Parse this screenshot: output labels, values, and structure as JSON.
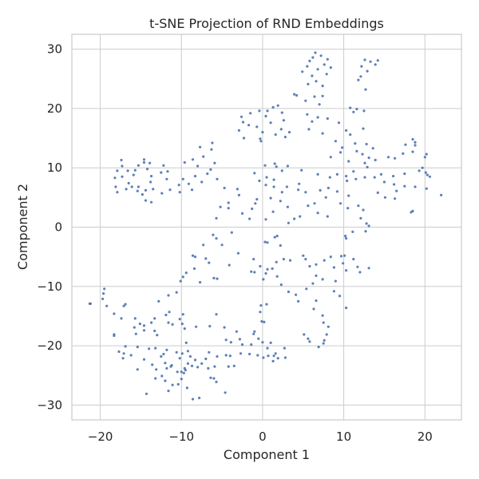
{
  "chart_data": {
    "type": "scatter",
    "title": "t-SNE Projection of RND Embeddings",
    "xlabel": "Component 1",
    "ylabel": "Component 2",
    "xlim": [
      -23.5,
      24.5
    ],
    "ylim": [
      -32.5,
      32.5
    ],
    "xticks": [
      -20,
      -10,
      0,
      10,
      20
    ],
    "yticks": [
      -30,
      -20,
      -10,
      0,
      10,
      20,
      30
    ],
    "grid": true,
    "color": "#4c72b0",
    "points": [
      [
        6.2,
        28.6
      ],
      [
        5.8,
        28.0
      ],
      [
        6.5,
        29.4
      ],
      [
        7.2,
        28.9
      ],
      [
        8.0,
        28.3
      ],
      [
        5.5,
        27.1
      ],
      [
        6.8,
        26.6
      ],
      [
        7.6,
        27.4
      ],
      [
        8.4,
        26.9
      ],
      [
        4.9,
        26.2
      ],
      [
        6.1,
        25.5
      ],
      [
        7.9,
        25.8
      ],
      [
        5.6,
        24.1
      ],
      [
        6.6,
        24.6
      ],
      [
        7.4,
        23.8
      ],
      [
        12.6,
        28.2
      ],
      [
        13.3,
        27.9
      ],
      [
        14.2,
        28.1
      ],
      [
        13.9,
        27.4
      ],
      [
        12.2,
        27.1
      ],
      [
        12.9,
        26.3
      ],
      [
        12.1,
        25.4
      ],
      [
        11.8,
        24.8
      ],
      [
        12.7,
        23.2
      ],
      [
        3.9,
        22.4
      ],
      [
        4.2,
        22.2
      ],
      [
        6.4,
        22.0
      ],
      [
        7.4,
        22.1
      ],
      [
        5.3,
        21.3
      ],
      [
        7.0,
        20.7
      ],
      [
        10.8,
        20.1
      ],
      [
        11.2,
        19.4
      ],
      [
        11.6,
        19.9
      ],
      [
        12.5,
        19.6
      ],
      [
        5.5,
        19.0
      ],
      [
        6.8,
        18.5
      ],
      [
        8.0,
        18.3
      ],
      [
        9.4,
        17.6
      ],
      [
        6.1,
        17.8
      ],
      [
        5.7,
        16.5
      ],
      [
        7.4,
        15.8
      ],
      [
        10.3,
        16.3
      ],
      [
        12.4,
        16.6
      ],
      [
        10.8,
        15.6
      ],
      [
        3.3,
        16.0
      ],
      [
        1.3,
        20.2
      ],
      [
        1.9,
        20.5
      ],
      [
        0.6,
        19.6
      ],
      [
        -0.4,
        19.6
      ],
      [
        2.4,
        19.3
      ],
      [
        -2.6,
        18.6
      ],
      [
        -1.5,
        19.2
      ],
      [
        0.4,
        18.7
      ],
      [
        2.6,
        18.0
      ],
      [
        -2.4,
        17.7
      ],
      [
        1.0,
        17.6
      ],
      [
        -1.7,
        17.2
      ],
      [
        -0.7,
        16.9
      ],
      [
        2.3,
        16.5
      ],
      [
        -2.9,
        16.3
      ],
      [
        0.0,
        16.0
      ],
      [
        1.6,
        15.6
      ],
      [
        -2.3,
        15.0
      ],
      [
        -0.3,
        14.9
      ],
      [
        2.8,
        15.2
      ],
      [
        -0.2,
        14.5
      ],
      [
        9.0,
        14.5
      ],
      [
        9.8,
        13.4
      ],
      [
        11.4,
        14.1
      ],
      [
        12.8,
        14.0
      ],
      [
        13.6,
        13.3
      ],
      [
        11.6,
        12.8
      ],
      [
        12.3,
        12.3
      ],
      [
        9.6,
        12.6
      ],
      [
        8.4,
        11.8
      ],
      [
        10.6,
        11.1
      ],
      [
        13.1,
        11.7
      ],
      [
        13.9,
        11.3
      ],
      [
        12.6,
        10.8
      ],
      [
        12.9,
        10.1
      ],
      [
        15.5,
        11.8
      ],
      [
        16.3,
        11.6
      ],
      [
        17.3,
        12.4
      ],
      [
        18.5,
        12.7
      ],
      [
        18.8,
        14.3
      ],
      [
        18.5,
        14.8
      ],
      [
        17.6,
        13.9
      ],
      [
        18.8,
        13.8
      ],
      [
        20.2,
        12.3
      ],
      [
        20.0,
        11.8
      ],
      [
        19.7,
        10.0
      ],
      [
        19.3,
        9.5
      ],
      [
        20.1,
        9.2
      ],
      [
        20.3,
        8.8
      ],
      [
        20.6,
        8.5
      ],
      [
        17.5,
        9.0
      ],
      [
        16.1,
        8.6
      ],
      [
        14.6,
        8.9
      ],
      [
        13.8,
        8.4
      ],
      [
        15.0,
        7.6
      ],
      [
        16.2,
        7.2
      ],
      [
        17.5,
        6.9
      ],
      [
        18.8,
        6.8
      ],
      [
        20.2,
        6.5
      ],
      [
        22.0,
        5.4
      ],
      [
        16.5,
        6.1
      ],
      [
        14.2,
        5.8
      ],
      [
        15.1,
        5.0
      ],
      [
        16.3,
        4.8
      ],
      [
        18.5,
        2.7
      ],
      [
        18.3,
        2.5
      ],
      [
        11.2,
        9.4
      ],
      [
        10.3,
        8.6
      ],
      [
        9.2,
        8.9
      ],
      [
        8.3,
        8.4
      ],
      [
        10.4,
        7.8
      ],
      [
        11.5,
        8.1
      ],
      [
        12.6,
        8.4
      ],
      [
        10.6,
        5.3
      ],
      [
        9.2,
        6.0
      ],
      [
        8.1,
        6.6
      ],
      [
        7.1,
        6.2
      ],
      [
        7.8,
        5.0
      ],
      [
        9.6,
        4.0
      ],
      [
        10.5,
        3.2
      ],
      [
        11.8,
        3.6
      ],
      [
        12.4,
        2.9
      ],
      [
        12.1,
        1.5
      ],
      [
        12.8,
        0.6
      ],
      [
        13.1,
        0.2
      ],
      [
        12.7,
        -0.7
      ],
      [
        11.1,
        -0.8
      ],
      [
        10.2,
        -1.5
      ],
      [
        -7.7,
        13.5
      ],
      [
        -6.2,
        14.2
      ],
      [
        -6.3,
        13.1
      ],
      [
        -7.3,
        11.9
      ],
      [
        -8.6,
        11.4
      ],
      [
        -5.9,
        10.8
      ],
      [
        -9.6,
        10.9
      ],
      [
        -8.0,
        10.3
      ],
      [
        -6.4,
        9.7
      ],
      [
        -6.8,
        9.0
      ],
      [
        -8.3,
        8.6
      ],
      [
        -9.8,
        8.1
      ],
      [
        -7.5,
        7.6
      ],
      [
        -5.6,
        8.1
      ],
      [
        -9.1,
        7.3
      ],
      [
        -10.3,
        7.1
      ],
      [
        -8.7,
        6.3
      ],
      [
        -10.2,
        5.9
      ],
      [
        -12.2,
        10.4
      ],
      [
        -11.7,
        9.4
      ],
      [
        -12.5,
        9.2
      ],
      [
        -13.7,
        8.6
      ],
      [
        -11.8,
        8.1
      ],
      [
        -11.4,
        6.3
      ],
      [
        -12.4,
        5.7
      ],
      [
        -13.5,
        6.4
      ],
      [
        -14.2,
        9.8
      ],
      [
        -14.6,
        11.4
      ],
      [
        -15.3,
        10.4
      ],
      [
        -14.6,
        10.9
      ],
      [
        -13.9,
        10.8
      ],
      [
        -15.7,
        9.6
      ],
      [
        -15.9,
        8.8
      ],
      [
        -16.6,
        9.5
      ],
      [
        -17.3,
        10.3
      ],
      [
        -17.4,
        11.3
      ],
      [
        -17.9,
        9.5
      ],
      [
        -17.3,
        8.5
      ],
      [
        -18.2,
        8.3
      ],
      [
        -16.5,
        7.4
      ],
      [
        -16.1,
        6.8
      ],
      [
        -15.3,
        6.8
      ],
      [
        -14.4,
        6.2
      ],
      [
        -13.8,
        7.6
      ],
      [
        -16.8,
        6.4
      ],
      [
        -18.1,
        6.8
      ],
      [
        -17.9,
        5.9
      ],
      [
        -14.4,
        4.5
      ],
      [
        -13.7,
        4.2
      ],
      [
        -14.8,
        5.5
      ],
      [
        -15.4,
        6.1
      ],
      [
        -4.7,
        6.6
      ],
      [
        -3.1,
        6.4
      ],
      [
        -2.9,
        5.4
      ],
      [
        -4.2,
        4.1
      ],
      [
        -5.2,
        3.4
      ],
      [
        -5.7,
        1.5
      ],
      [
        -4.2,
        3.2
      ],
      [
        -2.5,
        2.3
      ],
      [
        -1.6,
        1.4
      ],
      [
        -1.3,
        3.1
      ],
      [
        -0.9,
        4.0
      ],
      [
        -0.7,
        4.7
      ],
      [
        1.0,
        4.9
      ],
      [
        2.2,
        4.4
      ],
      [
        3.1,
        3.4
      ],
      [
        1.3,
        2.6
      ],
      [
        0.4,
        1.3
      ],
      [
        1.5,
        10.7
      ],
      [
        1.7,
        10.2
      ],
      [
        0.3,
        10.4
      ],
      [
        -1.0,
        9.1
      ],
      [
        0.5,
        8.4
      ],
      [
        -0.4,
        7.8
      ],
      [
        0.4,
        7.1
      ],
      [
        1.4,
        6.8
      ],
      [
        1.4,
        8.0
      ],
      [
        2.4,
        9.5
      ],
      [
        3.1,
        10.3
      ],
      [
        4.8,
        9.6
      ],
      [
        6.8,
        8.9
      ],
      [
        4.5,
        7.3
      ],
      [
        5.3,
        5.9
      ],
      [
        4.4,
        6.3
      ],
      [
        5.6,
        3.6
      ],
      [
        3.0,
        6.8
      ],
      [
        2.4,
        5.9
      ],
      [
        6.4,
        4.0
      ],
      [
        6.8,
        2.4
      ],
      [
        8.0,
        1.8
      ],
      [
        4.6,
        1.8
      ],
      [
        3.9,
        1.4
      ],
      [
        3.2,
        0.7
      ],
      [
        10.3,
        -1.9
      ],
      [
        10.1,
        -4.8
      ],
      [
        11.2,
        -5.4
      ],
      [
        9.7,
        -4.9
      ],
      [
        9.9,
        -6.1
      ],
      [
        10.3,
        -7.3
      ],
      [
        11.7,
        -6.7
      ],
      [
        13.1,
        -6.9
      ],
      [
        12.0,
        -7.6
      ],
      [
        8.4,
        -5.0
      ],
      [
        7.6,
        -5.6
      ],
      [
        8.8,
        -6.8
      ],
      [
        6.6,
        -6.3
      ],
      [
        5.0,
        -4.8
      ],
      [
        5.8,
        -6.6
      ],
      [
        5.3,
        -5.4
      ],
      [
        3.4,
        -5.6
      ],
      [
        2.6,
        -5.4
      ],
      [
        1.7,
        -5.9
      ],
      [
        2.2,
        -3.1
      ],
      [
        1.5,
        -1.7
      ],
      [
        1.8,
        -1.5
      ],
      [
        0.6,
        -2.6
      ],
      [
        0.3,
        -2.5
      ],
      [
        -1.1,
        -5.4
      ],
      [
        -3.0,
        -4.4
      ],
      [
        -5.0,
        -3.0
      ],
      [
        -5.7,
        -1.9
      ],
      [
        -3.8,
        -0.9
      ],
      [
        -6.1,
        -1.3
      ],
      [
        -7.3,
        -3.0
      ],
      [
        -8.6,
        -4.8
      ],
      [
        -8.3,
        -5.0
      ],
      [
        -6.6,
        -6.0
      ],
      [
        -7.0,
        -5.3
      ],
      [
        -8.4,
        -7.0
      ],
      [
        -9.4,
        -7.7
      ],
      [
        -9.8,
        -8.4
      ],
      [
        -10.1,
        -9.1
      ],
      [
        -7.7,
        -9.3
      ],
      [
        -6.0,
        -8.6
      ],
      [
        -5.6,
        -8.7
      ],
      [
        -4.1,
        -6.4
      ],
      [
        -1.4,
        -7.5
      ],
      [
        -1.0,
        -7.6
      ],
      [
        -0.3,
        -6.6
      ],
      [
        0.6,
        -7.1
      ],
      [
        1.8,
        -8.3
      ],
      [
        0.1,
        -8.8
      ],
      [
        0.4,
        -7.8
      ],
      [
        1.2,
        -7.0
      ],
      [
        2.3,
        -9.7
      ],
      [
        3.2,
        -10.9
      ],
      [
        4.1,
        -11.4
      ],
      [
        4.4,
        -12.5
      ],
      [
        5.4,
        -10.4
      ],
      [
        6.2,
        -9.5
      ],
      [
        6.6,
        -8.2
      ],
      [
        7.4,
        -8.8
      ],
      [
        9.0,
        -9.1
      ],
      [
        8.8,
        -10.8
      ],
      [
        9.5,
        -11.6
      ],
      [
        10.3,
        -13.6
      ],
      [
        6.6,
        -12.4
      ],
      [
        6.3,
        -13.8
      ],
      [
        7.4,
        -14.9
      ],
      [
        7.5,
        -16.1
      ],
      [
        8.1,
        -16.8
      ],
      [
        7.9,
        -18.1
      ],
      [
        7.6,
        -19.1
      ],
      [
        7.5,
        -19.6
      ],
      [
        6.9,
        -20.2
      ],
      [
        5.8,
        -19.3
      ],
      [
        5.6,
        -18.8
      ],
      [
        5.1,
        -18.1
      ],
      [
        0.5,
        -13.0
      ],
      [
        -0.2,
        -13.2
      ],
      [
        -0.3,
        -14.3
      ],
      [
        -0.1,
        -15.9
      ],
      [
        0.2,
        -16.0
      ],
      [
        -1.0,
        -17.6
      ],
      [
        -1.1,
        -18.0
      ],
      [
        -0.5,
        -18.8
      ],
      [
        0.0,
        -19.4
      ],
      [
        0.6,
        -20.4
      ],
      [
        1.0,
        -19.5
      ],
      [
        2.7,
        -20.4
      ],
      [
        1.6,
        -21.3
      ],
      [
        1.9,
        -22.1
      ],
      [
        1.3,
        -22.6
      ],
      [
        1.4,
        -21.7
      ],
      [
        2.8,
        -22.0
      ],
      [
        0.7,
        -21.7
      ],
      [
        0.1,
        -22.0
      ],
      [
        -0.6,
        -21.6
      ],
      [
        -1.6,
        -21.4
      ],
      [
        -2.7,
        -21.3
      ],
      [
        -2.5,
        -19.8
      ],
      [
        -1.4,
        -19.8
      ],
      [
        -2.8,
        -18.9
      ],
      [
        -3.2,
        -17.6
      ],
      [
        -3.9,
        -19.4
      ],
      [
        -4.5,
        -19.0
      ],
      [
        -4.5,
        -21.6
      ],
      [
        -4.0,
        -21.7
      ],
      [
        -5.6,
        -21.8
      ],
      [
        -6.6,
        -21.1
      ],
      [
        -7.0,
        -22.2
      ],
      [
        -5.9,
        -23.5
      ],
      [
        -4.2,
        -23.5
      ],
      [
        -3.5,
        -23.4
      ],
      [
        -4.6,
        -27.9
      ],
      [
        -5.7,
        -26.1
      ],
      [
        -6.0,
        -25.5
      ],
      [
        -6.4,
        -25.4
      ],
      [
        -6.7,
        -23.8
      ],
      [
        -8.0,
        -23.6
      ],
      [
        -9.6,
        -23.8
      ],
      [
        -9.7,
        -24.6
      ],
      [
        -10.0,
        -24.4
      ],
      [
        -10.5,
        -24.4
      ],
      [
        -11.3,
        -23.5
      ],
      [
        -11.8,
        -23.8
      ],
      [
        -12.4,
        -25.1
      ],
      [
        -13.2,
        -25.5
      ],
      [
        -12.0,
        -25.9
      ],
      [
        -11.1,
        -26.6
      ],
      [
        -10.4,
        -26.5
      ],
      [
        -10.0,
        -25.6
      ],
      [
        -9.5,
        -24.1
      ],
      [
        -9.2,
        -23.0
      ],
      [
        -8.7,
        -23.4
      ],
      [
        -10.2,
        -22.1
      ],
      [
        -11.2,
        -23.3
      ],
      [
        -12.0,
        -22.9
      ],
      [
        -13.6,
        -23.2
      ],
      [
        -13.1,
        -24.0
      ],
      [
        -12.2,
        -21.4
      ],
      [
        -10.6,
        -21.1
      ],
      [
        -9.9,
        -21.3
      ],
      [
        -9.2,
        -20.9
      ],
      [
        -8.9,
        -21.8
      ],
      [
        -8.3,
        -22.4
      ],
      [
        -7.5,
        -23.0
      ],
      [
        -9.3,
        -27.1
      ],
      [
        -8.6,
        -29.0
      ],
      [
        -7.8,
        -28.8
      ],
      [
        -11.6,
        -27.6
      ],
      [
        -14.3,
        -28.1
      ],
      [
        -15.4,
        -24.0
      ],
      [
        -14.6,
        -22.3
      ],
      [
        -14.0,
        -20.5
      ],
      [
        -15.4,
        -20.2
      ],
      [
        -16.2,
        -21.6
      ],
      [
        -17.1,
        -21.3
      ],
      [
        -17.7,
        -21.0
      ],
      [
        -17.2,
        -22.1
      ],
      [
        -16.9,
        -20.1
      ],
      [
        -15.6,
        -18.0
      ],
      [
        -15.8,
        -16.9
      ],
      [
        -15.1,
        -16.3
      ],
      [
        -15.7,
        -15.4
      ],
      [
        -14.6,
        -16.6
      ],
      [
        -14.6,
        -17.4
      ],
      [
        -13.7,
        -16.1
      ],
      [
        -13.3,
        -17.5
      ],
      [
        -13.0,
        -18.2
      ],
      [
        -17.4,
        -15.4
      ],
      [
        -18.3,
        -14.6
      ],
      [
        -19.2,
        -13.3
      ],
      [
        -19.7,
        -12.1
      ],
      [
        -19.5,
        -10.4
      ],
      [
        -19.6,
        -11.2
      ],
      [
        -17.1,
        -13.3
      ],
      [
        -16.9,
        -13.0
      ],
      [
        -18.3,
        -18.1
      ],
      [
        -18.3,
        -18.3
      ],
      [
        -21.2,
        -12.9
      ],
      [
        -21.3,
        -12.9
      ],
      [
        -11.9,
        -14.8
      ],
      [
        -11.5,
        -14.3
      ],
      [
        -11.6,
        -16.1
      ],
      [
        -11.1,
        -16.4
      ],
      [
        -10.2,
        -15.5
      ],
      [
        -9.9,
        -16.3
      ],
      [
        -9.6,
        -17.1
      ],
      [
        -9.8,
        -14.7
      ],
      [
        -8.2,
        -16.8
      ],
      [
        -9.4,
        -19.5
      ],
      [
        -11.8,
        -20.7
      ],
      [
        -13.2,
        -20.4
      ],
      [
        -12.5,
        -21.8
      ],
      [
        -12.8,
        -12.5
      ],
      [
        -13.3,
        -15.4
      ],
      [
        -11.6,
        -11.5
      ],
      [
        -10.6,
        -11.0
      ],
      [
        -5.7,
        -14.7
      ],
      [
        -6.5,
        -16.7
      ],
      [
        -4.7,
        -16.9
      ]
    ]
  }
}
